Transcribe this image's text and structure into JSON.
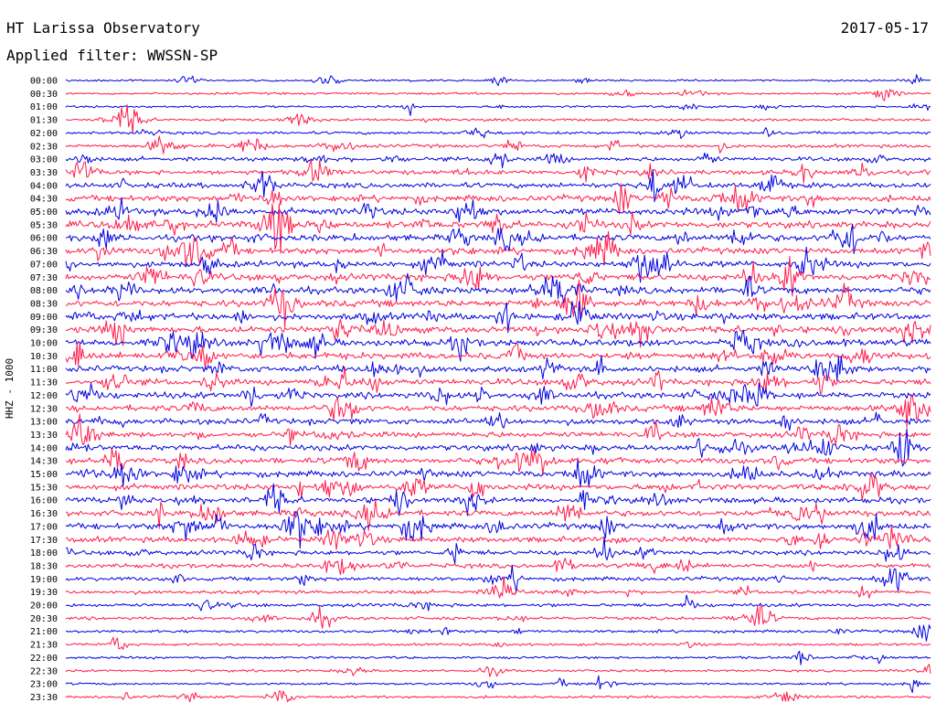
{
  "header": {
    "station": "HT Larissa Observatory",
    "date": "2017-05-17",
    "filter": "Applied filter: WWSSN-SP"
  },
  "chart_data": {
    "type": "line",
    "title": "HT Larissa Observatory",
    "subtitle": "Applied filter: WWSSN-SP",
    "ylabel": "HHZ - 1000",
    "x_start": "00:00",
    "x_end": "24:00",
    "trace_interval_minutes": 30,
    "grid": false,
    "colors": [
      "#0000e0",
      "#ff1a4a"
    ],
    "series": [
      {
        "name": "00:00",
        "activity": 0.2
      },
      {
        "name": "00:30",
        "activity": 0.25
      },
      {
        "name": "01:00",
        "activity": 0.25
      },
      {
        "name": "01:30",
        "activity": 0.3
      },
      {
        "name": "02:00",
        "activity": 0.35
      },
      {
        "name": "02:30",
        "activity": 0.45
      },
      {
        "name": "03:00",
        "activity": 0.55
      },
      {
        "name": "03:30",
        "activity": 0.65
      },
      {
        "name": "04:00",
        "activity": 0.75
      },
      {
        "name": "04:30",
        "activity": 0.9
      },
      {
        "name": "05:00",
        "activity": 1.0
      },
      {
        "name": "05:30",
        "activity": 1.0
      },
      {
        "name": "06:00",
        "activity": 0.95
      },
      {
        "name": "06:30",
        "activity": 0.9
      },
      {
        "name": "07:00",
        "activity": 0.95
      },
      {
        "name": "07:30",
        "activity": 1.0
      },
      {
        "name": "08:00",
        "activity": 1.0
      },
      {
        "name": "08:30",
        "activity": 1.0
      },
      {
        "name": "09:00",
        "activity": 1.0
      },
      {
        "name": "09:30",
        "activity": 0.95
      },
      {
        "name": "10:00",
        "activity": 1.0
      },
      {
        "name": "10:30",
        "activity": 0.95
      },
      {
        "name": "11:00",
        "activity": 0.9
      },
      {
        "name": "11:30",
        "activity": 0.9
      },
      {
        "name": "12:00",
        "activity": 0.9
      },
      {
        "name": "12:30",
        "activity": 0.9
      },
      {
        "name": "13:00",
        "activity": 0.85
      },
      {
        "name": "13:30",
        "activity": 0.85
      },
      {
        "name": "14:00",
        "activity": 0.85
      },
      {
        "name": "14:30",
        "activity": 0.85
      },
      {
        "name": "15:00",
        "activity": 0.9
      },
      {
        "name": "15:30",
        "activity": 0.85
      },
      {
        "name": "16:00",
        "activity": 0.85
      },
      {
        "name": "16:30",
        "activity": 0.85
      },
      {
        "name": "17:00",
        "activity": 0.9
      },
      {
        "name": "17:30",
        "activity": 0.8
      },
      {
        "name": "18:00",
        "activity": 0.65
      },
      {
        "name": "18:30",
        "activity": 0.6
      },
      {
        "name": "19:00",
        "activity": 0.55
      },
      {
        "name": "19:30",
        "activity": 0.5
      },
      {
        "name": "20:00",
        "activity": 0.45
      },
      {
        "name": "20:30",
        "activity": 0.4
      },
      {
        "name": "21:00",
        "activity": 0.35
      },
      {
        "name": "21:30",
        "activity": 0.3
      },
      {
        "name": "22:00",
        "activity": 0.3
      },
      {
        "name": "22:30",
        "activity": 0.28
      },
      {
        "name": "23:00",
        "activity": 0.25
      },
      {
        "name": "23:30",
        "activity": 0.3
      }
    ]
  }
}
